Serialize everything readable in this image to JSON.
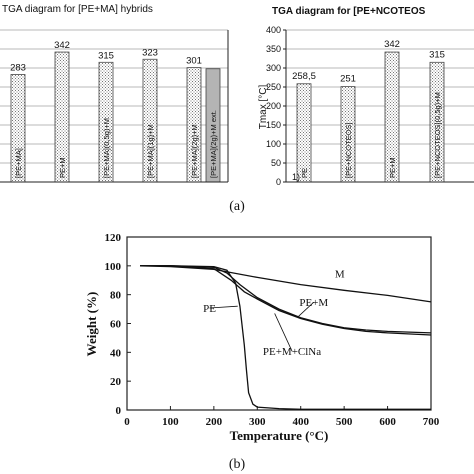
{
  "panel_a_label": "(a)",
  "panel_b_label": "(b)",
  "chart_data": [
    {
      "type": "bar",
      "title": "TGA diagram for [PE+MA] hybrids",
      "categories": [
        "[PE+MA]",
        "PE+M",
        "[PE+MA](0,5g)+M",
        "[PE+MA](1g)+M",
        "[PE+MA](2g)+M",
        "[PE+MA](2g)+M ext."
      ],
      "values": [
        283,
        342,
        315,
        323,
        301,
        null
      ],
      "value_labels": [
        "283",
        "342",
        "315",
        "323",
        "301",
        ""
      ],
      "bar_styles": [
        "dotted",
        "dotted",
        "dotted",
        "dotted",
        "dotted",
        "gray"
      ],
      "ylim": [
        0,
        400
      ],
      "grid": true
    },
    {
      "type": "bar",
      "title": "TGA diagram for [PE+NCOTEOS",
      "ylabel": "Tmax [°C]",
      "categories": [
        "PE",
        "[PE+NCOTEOS]",
        "PE+M",
        "[PE+NCOTEOS](0,5g)+M"
      ],
      "values": [
        258.5,
        251,
        342,
        315
      ],
      "value_labels": [
        "258,5",
        "251",
        "342",
        "315"
      ],
      "yticks": [
        "0",
        "50",
        "100",
        "150",
        "200",
        "250",
        "300",
        "350",
        "400"
      ],
      "ylim": [
        0,
        400
      ],
      "grid": true,
      "footnote": "1)"
    },
    {
      "type": "line",
      "xlabel": "Temperature (°C)",
      "ylabel": "Weight (%)",
      "xlim": [
        0,
        700
      ],
      "ylim": [
        0,
        120
      ],
      "xticks": [
        "0",
        "100",
        "200",
        "300",
        "400",
        "500",
        "600",
        "700"
      ],
      "yticks": [
        "0",
        "20",
        "40",
        "60",
        "80",
        "100",
        "120"
      ],
      "series": [
        {
          "name": "M",
          "x": [
            30,
            100,
            200,
            300,
            400,
            500,
            600,
            700
          ],
          "y": [
            100,
            99.5,
            97.5,
            92,
            87,
            83,
            79.5,
            75
          ]
        },
        {
          "name": "PE",
          "x": [
            30,
            100,
            200,
            230,
            250,
            260,
            270,
            275,
            280,
            290,
            300,
            350,
            400,
            500,
            700
          ],
          "y": [
            100,
            100,
            99.5,
            97,
            88,
            72,
            45,
            28,
            12,
            4,
            2,
            1,
            0.5,
            0.5,
            0.5
          ]
        },
        {
          "name": "PE+M",
          "x": [
            30,
            100,
            200,
            230,
            260,
            300,
            350,
            400,
            450,
            500,
            550,
            600,
            700
          ],
          "y": [
            100,
            100,
            99,
            95,
            87,
            78,
            70,
            64,
            60,
            57,
            55.5,
            54.5,
            53.5
          ]
        },
        {
          "name": "PE+M+ClNa",
          "x": [
            30,
            100,
            200,
            240,
            270,
            300,
            350,
            400,
            450,
            500,
            550,
            600,
            700
          ],
          "y": [
            100,
            100,
            98,
            90,
            82,
            77,
            69,
            63.5,
            59.5,
            56.5,
            54.5,
            53.5,
            52
          ]
        }
      ]
    }
  ]
}
